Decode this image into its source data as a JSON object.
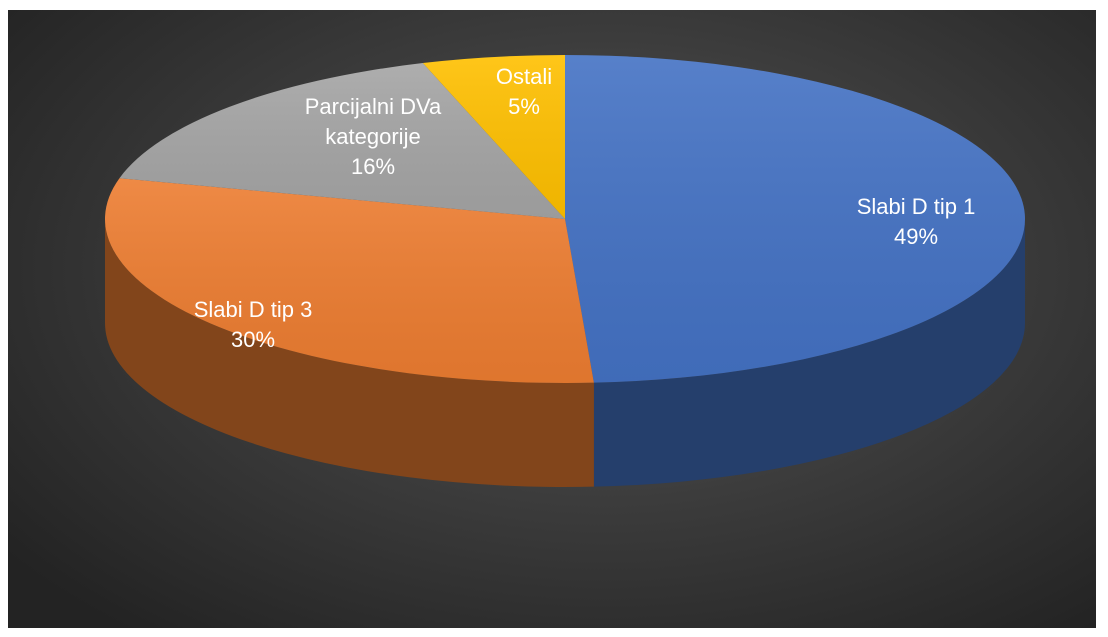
{
  "chart_data": {
    "type": "pie",
    "style": "3d",
    "title": "",
    "legend": "none",
    "slices": [
      {
        "label": "Slabi D tip 1",
        "label_lines": [
          "Slabi D tip 1"
        ],
        "value": 49,
        "value_label": "49%",
        "color": "#4472c4"
      },
      {
        "label": "Slabi D tip 3",
        "label_lines": [
          "Slabi D tip 3"
        ],
        "value": 30,
        "value_label": "30%",
        "color": "#ed7d31"
      },
      {
        "label": "Parcijalni DVa kategorije",
        "label_lines": [
          "Parcijalni DVa",
          "kategorije"
        ],
        "value": 16,
        "value_label": "16%",
        "color": "#a5a5a5"
      },
      {
        "label": "Ostali",
        "label_lines": [
          "Ostali"
        ],
        "value": 5,
        "value_label": "5%",
        "color": "#ffc000"
      }
    ]
  }
}
